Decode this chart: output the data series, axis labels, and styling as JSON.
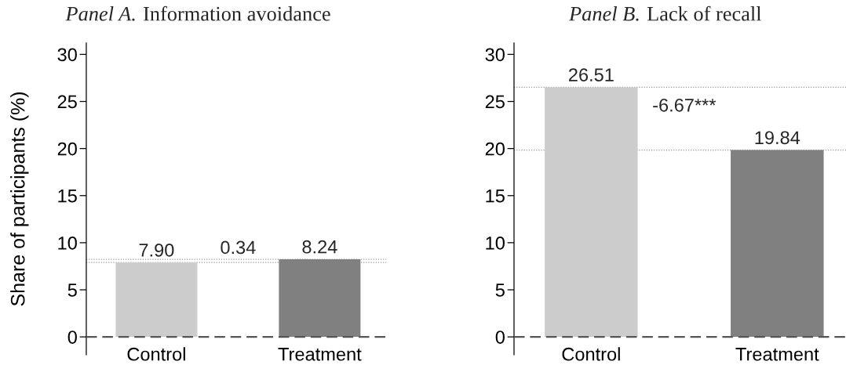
{
  "chart_data": [
    {
      "type": "bar",
      "title": "Panel A. Information avoidance",
      "ylabel": "Share of participants (%)",
      "categories": [
        "Control",
        "Treatment"
      ],
      "values": [
        7.9,
        8.24
      ],
      "value_labels": [
        "7.90",
        "8.24"
      ],
      "colors": [
        "#cccccc",
        "#808080"
      ],
      "ylim": [
        -1.9,
        31.2
      ],
      "yticks": [
        0,
        5,
        10,
        15,
        20,
        25,
        30
      ],
      "ref_lines": [
        {
          "axis": "y",
          "value": 0,
          "line_style": "dashed",
          "color": "#555555"
        },
        {
          "axis": "y",
          "value": 7.9,
          "line_style": "dotted",
          "color": "#999999"
        },
        {
          "axis": "y",
          "value": 8.24,
          "line_style": "dotted",
          "color": "#999999"
        }
      ],
      "annotations": [
        "0.34"
      ]
    },
    {
      "type": "bar",
      "title": "Panel B. Lack of recall",
      "categories": [
        "Control",
        "Treatment"
      ],
      "values": [
        26.51,
        19.84
      ],
      "value_labels": [
        "26.51",
        "19.84"
      ],
      "colors": [
        "#cccccc",
        "#808080"
      ],
      "ylim": [
        -1.9,
        31.2
      ],
      "yticks": [
        0,
        5,
        10,
        15,
        20,
        25,
        30
      ],
      "ref_lines": [
        {
          "axis": "y",
          "value": 0,
          "line_style": "dashed",
          "color": "#555555"
        },
        {
          "axis": "y",
          "value": 26.51,
          "line_style": "dotted",
          "color": "#999999"
        },
        {
          "axis": "y",
          "value": 19.84,
          "line_style": "dotted",
          "color": "#999999"
        }
      ],
      "annotations": [
        "-6.67***"
      ]
    }
  ]
}
